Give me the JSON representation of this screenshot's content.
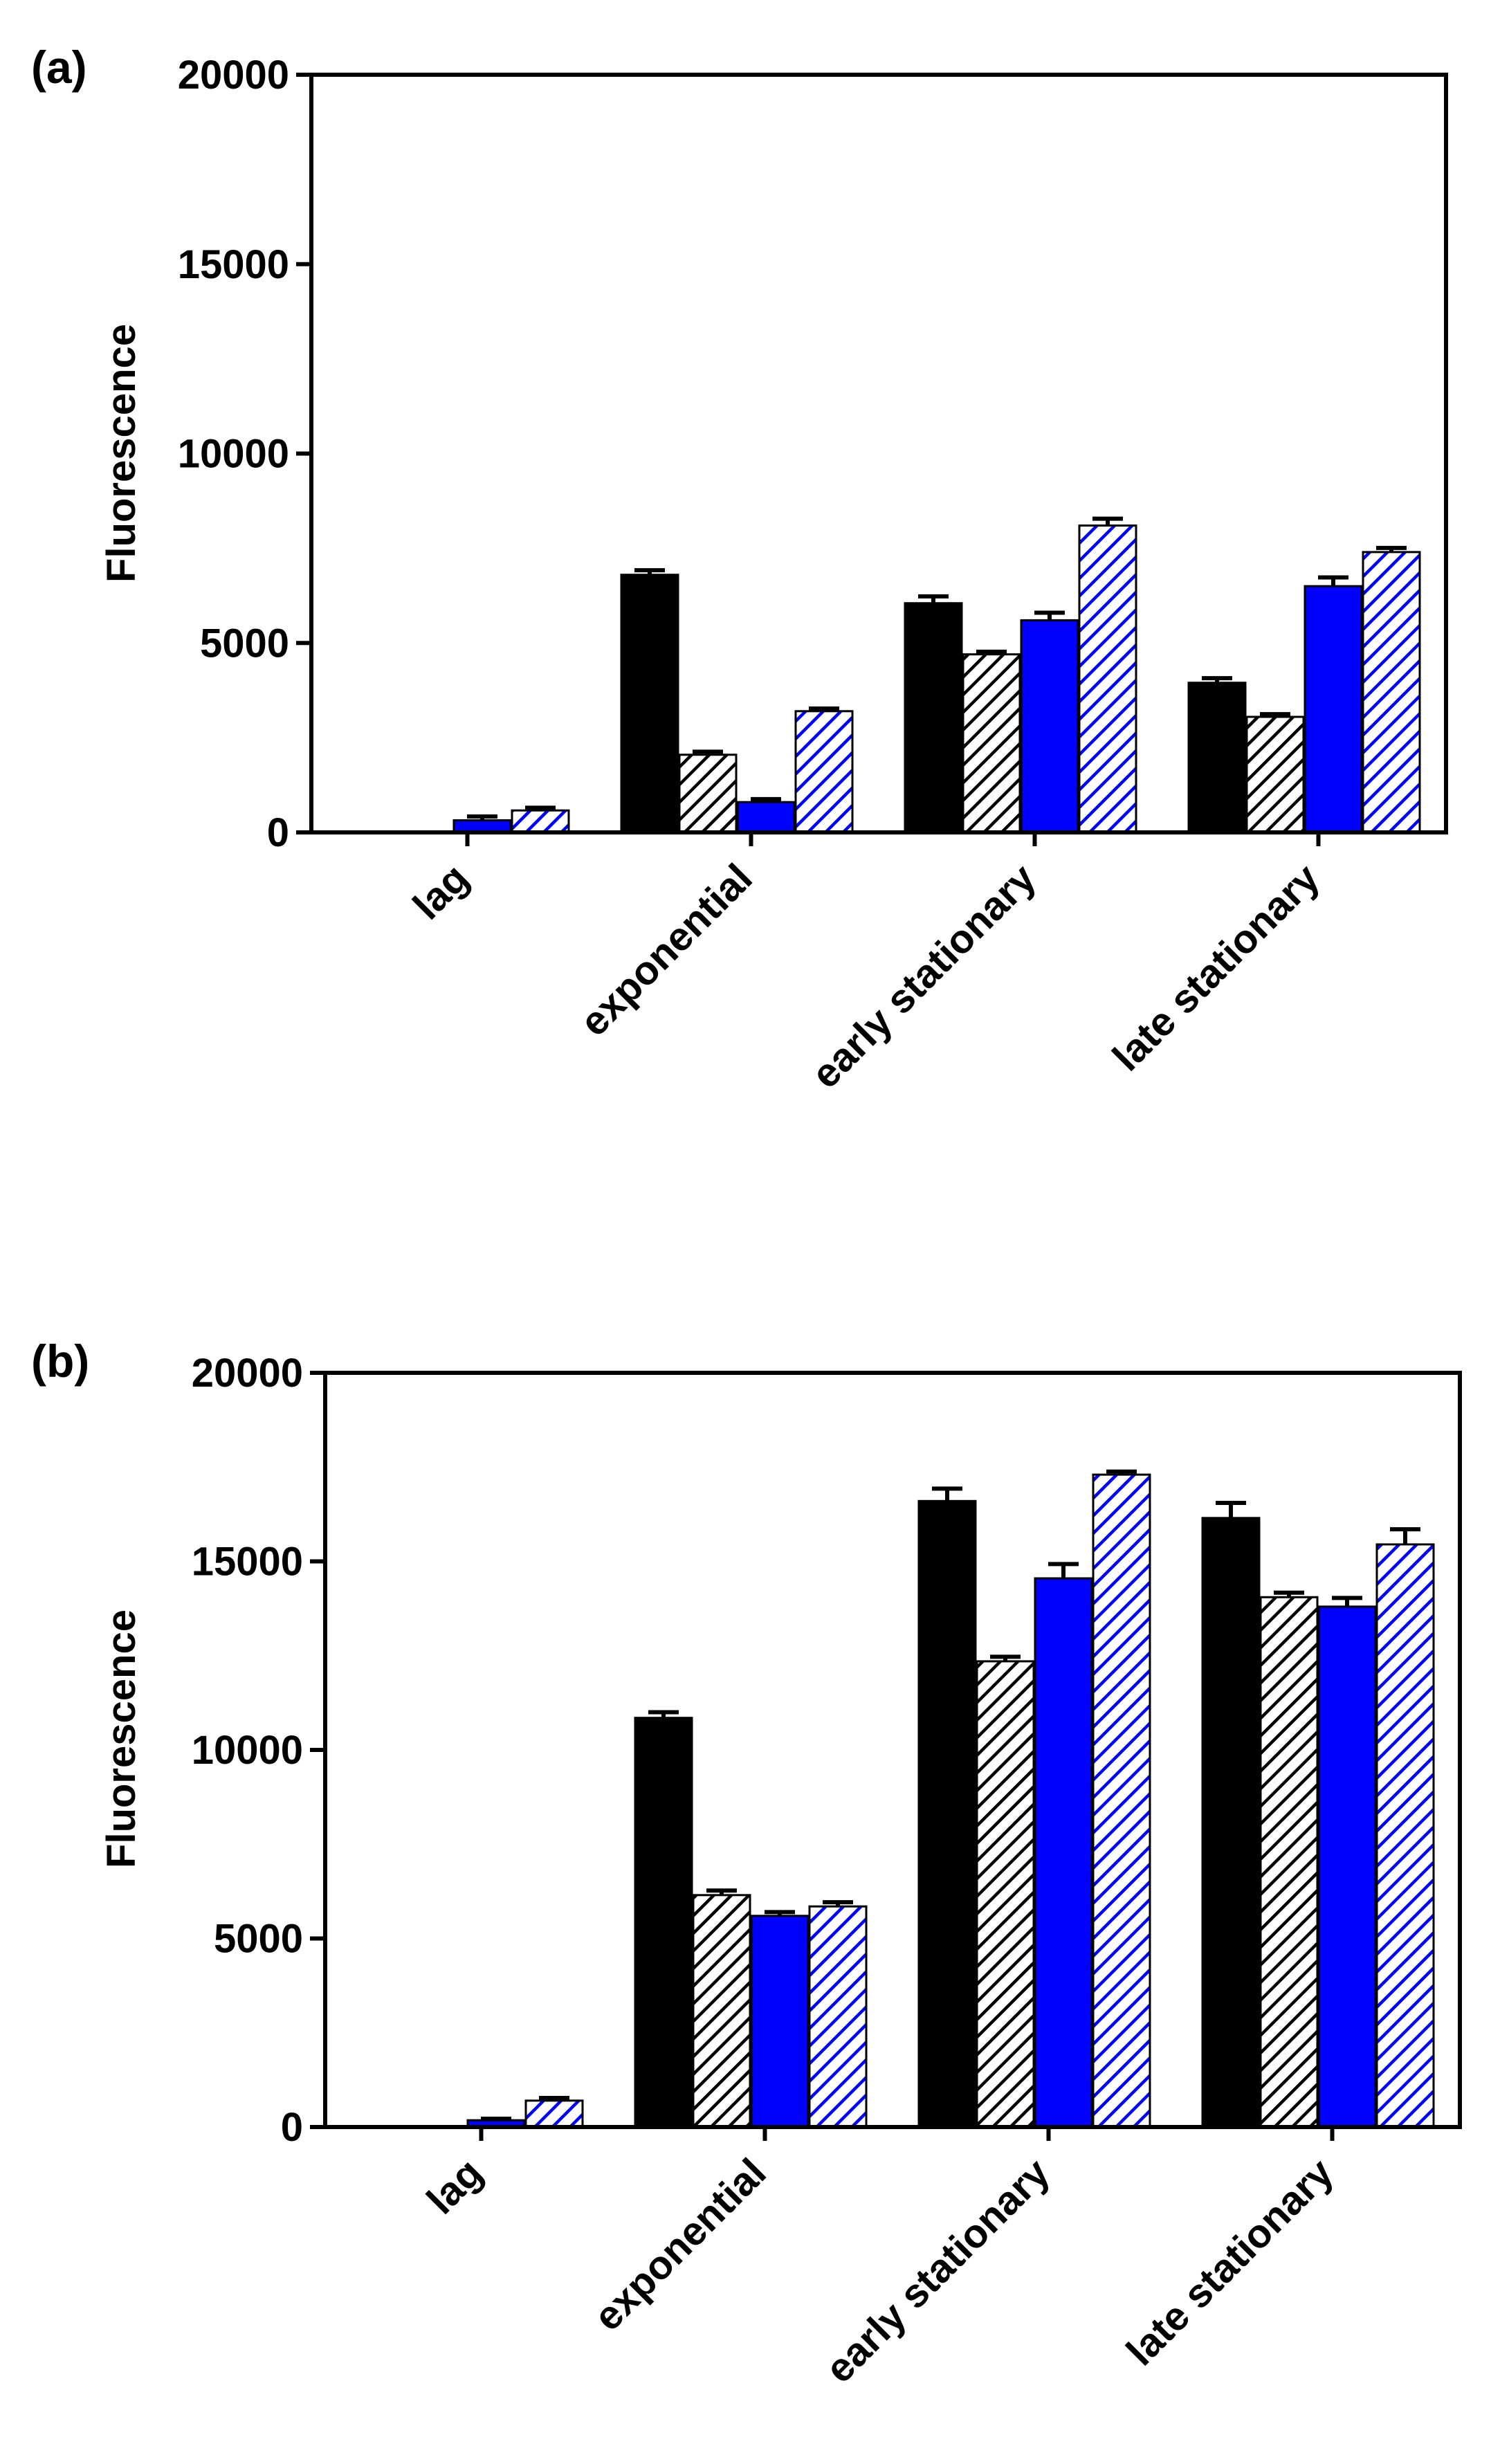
{
  "colors": {
    "solid_black": "#000000",
    "hatched_black": "#000000",
    "solid_blue": "#0000ff",
    "hatched_blue": "#0000ff",
    "background": "#ffffff"
  },
  "chart_data": [
    {
      "type": "bar",
      "panel": "(a)",
      "categories": [
        "lag",
        "exponential",
        "early stationary",
        "late stationary"
      ],
      "ylabel": "Fluorescence",
      "xlabel": "",
      "ylim": [
        0,
        20000
      ],
      "yticks": [
        "0",
        "5000",
        "10000",
        "15000",
        "20000"
      ],
      "series": [
        {
          "name": "solid black",
          "fill": "solid",
          "color": "#000000",
          "values": [
            0,
            6800,
            6050,
            3950
          ],
          "errors": [
            0,
            120,
            180,
            120
          ]
        },
        {
          "name": "hatched black",
          "fill": "hatched",
          "color": "#000000",
          "values": [
            0,
            2050,
            4700,
            3050
          ],
          "errors": [
            0,
            80,
            70,
            70
          ]
        },
        {
          "name": "solid blue",
          "fill": "solid",
          "color": "#0000ff",
          "values": [
            320,
            800,
            5600,
            6500
          ],
          "errors": [
            100,
            80,
            200,
            230
          ]
        },
        {
          "name": "hatched blue",
          "fill": "hatched",
          "color": "#0000ff",
          "values": [
            580,
            3200,
            8100,
            7400
          ],
          "errors": [
            70,
            70,
            180,
            110
          ]
        }
      ]
    },
    {
      "type": "bar",
      "panel": "(b)",
      "categories": [
        "lag",
        "exponential",
        "early stationary",
        "late stationary"
      ],
      "ylabel": "Fluorescence",
      "xlabel": "",
      "ylim": [
        0,
        20000
      ],
      "yticks": [
        "0",
        "5000",
        "10000",
        "15000",
        "20000"
      ],
      "series": [
        {
          "name": "solid black",
          "fill": "solid",
          "color": "#000000",
          "values": [
            0,
            10850,
            16600,
            16150
          ],
          "errors": [
            0,
            150,
            330,
            400
          ]
        },
        {
          "name": "hatched black",
          "fill": "hatched",
          "color": "#000000",
          "values": [
            0,
            6150,
            12350,
            14050
          ],
          "errors": [
            0,
            120,
            120,
            120
          ]
        },
        {
          "name": "solid blue",
          "fill": "solid",
          "color": "#0000ff",
          "values": [
            180,
            5600,
            14550,
            13800
          ],
          "errors": [
            40,
            100,
            380,
            230
          ]
        },
        {
          "name": "hatched blue",
          "fill": "hatched",
          "color": "#0000ff",
          "values": [
            700,
            5850,
            17300,
            15450
          ],
          "errors": [
            70,
            110,
            80,
            400
          ]
        }
      ]
    }
  ]
}
